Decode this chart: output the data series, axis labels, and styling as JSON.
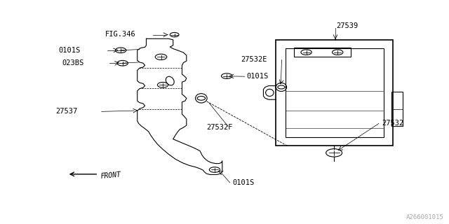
{
  "background_color": "#ffffff",
  "line_color": "#000000",
  "text_color": "#000000",
  "watermark": "A266001015",
  "labels": {
    "fig346": "FIG.346",
    "l0101s_top": "0101S",
    "l023bs": "023BS",
    "l0101s_mid": "0101S",
    "l27537": "27537",
    "l27532f": "27532F",
    "l0101s_bot": "0101S",
    "front": "FRONT",
    "l27539": "27539",
    "l27532e": "27532E",
    "l27532": "27532"
  },
  "font_size": 7.5,
  "dpi": 100,
  "fig_width": 6.4,
  "fig_height": 3.2
}
